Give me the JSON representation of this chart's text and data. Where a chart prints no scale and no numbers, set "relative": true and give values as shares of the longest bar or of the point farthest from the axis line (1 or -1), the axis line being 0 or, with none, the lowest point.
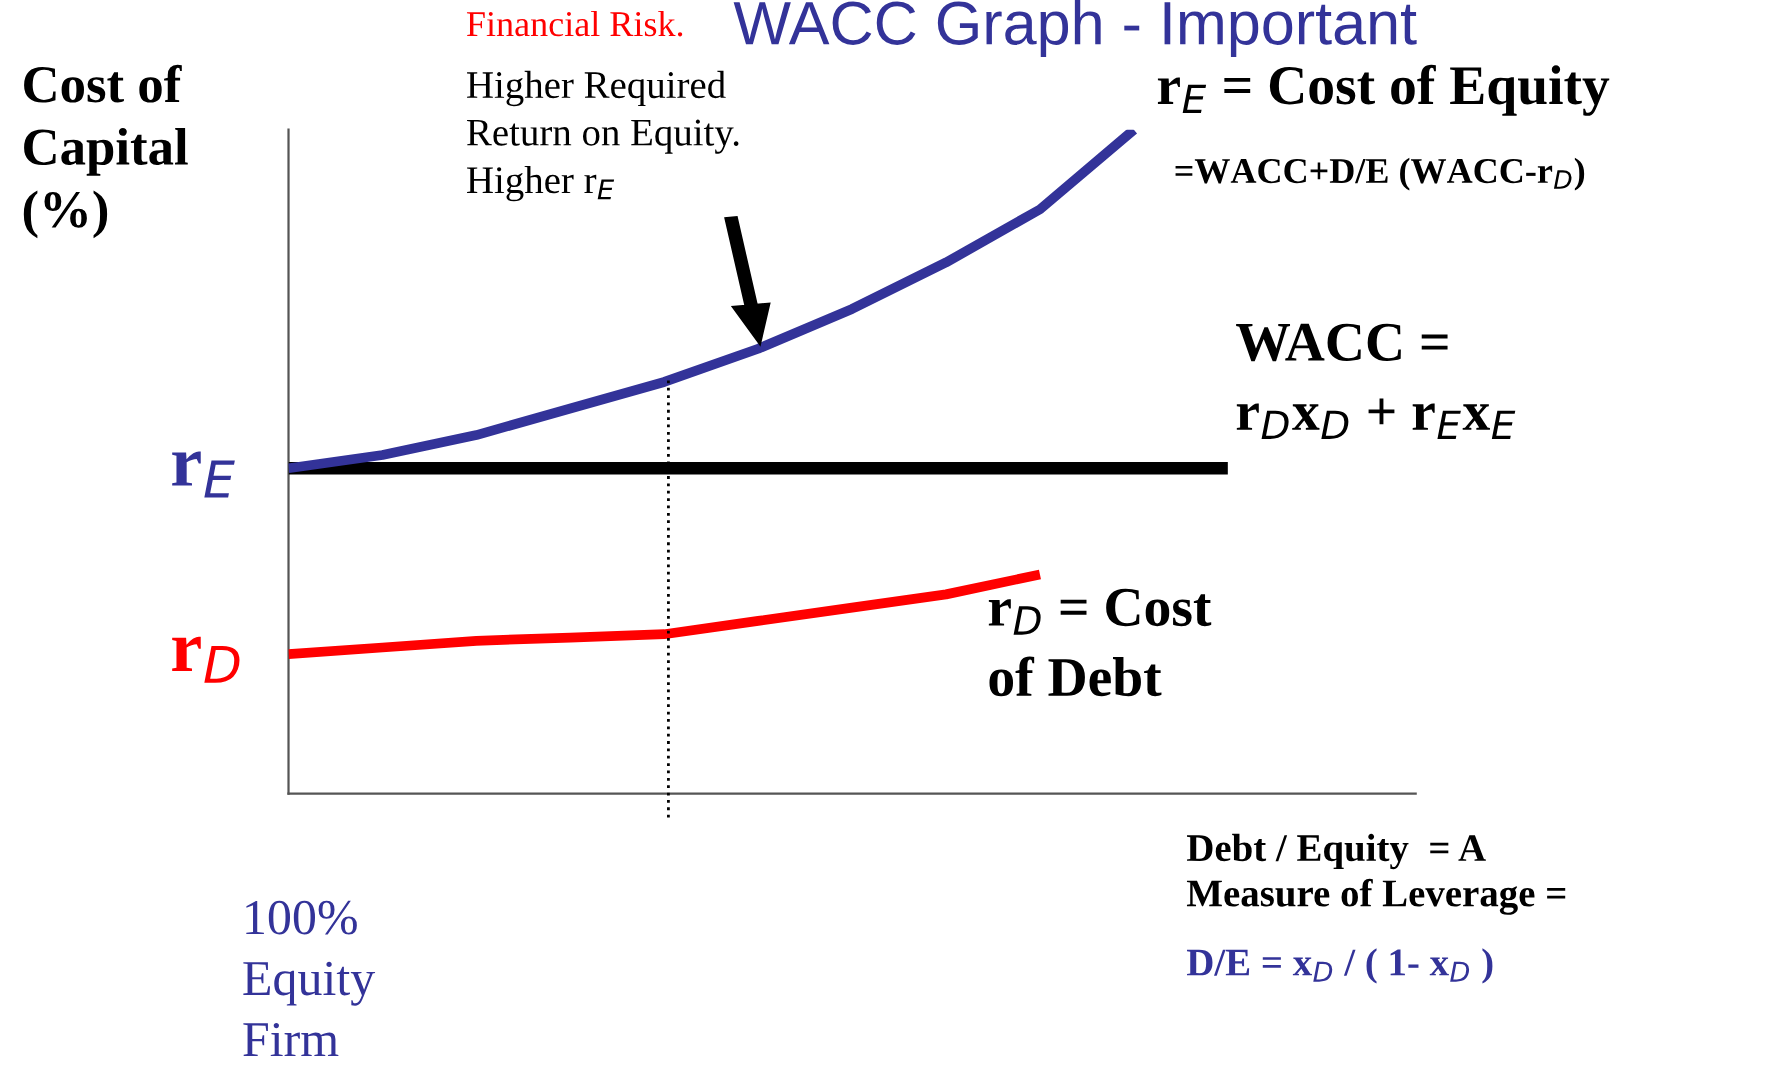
{
  "chart_data": {
    "type": "line",
    "relative": true,
    "title": "WACC Graph - Important",
    "ylabel": "Cost of\nCapital\n(%)",
    "xlabel": "Debt / Equity  = A\nMeasure of Leverage =",
    "categories": [
      null,
      null,
      null,
      null,
      null,
      null,
      null,
      null,
      null,
      null,
      null,
      null,
      null
    ],
    "series": [
      {
        "name": "r$_{E}$ = Cost of Equity",
        "color": "#333399",
        "values": [
          0.49,
          0.51,
          0.54,
          0.58,
          0.62,
          0.67,
          0.73,
          0.8,
          0.88,
          1.0,
          null,
          null,
          null
        ]
      },
      {
        "name": "WACC =\nr$_{D}$x$_{D}$ + r$_{E}$x$_{E}$",
        "color": "#000000",
        "values": [
          0.49,
          0.49,
          0.49,
          0.49,
          0.49,
          0.49,
          0.49,
          0.49,
          0.49,
          0.49,
          0.49,
          null,
          null
        ]
      },
      {
        "name": "r$_{D}$ = Cost\nof Debt",
        "color": "#ff0000",
        "values": [
          0.21,
          0.22,
          0.23,
          0.235,
          0.24,
          0.26,
          0.28,
          0.3,
          0.33,
          null,
          null,
          null,
          null
        ]
      }
    ],
    "annotations": [
      "=WACC+D/E (WACC-r$_{D}$)",
      "Financial Risk.",
      "Higher Required\nReturn on Equity.\nHigher r$_{E}$",
      "r$_{E}$",
      "r$_{D}$",
      "100%\nEquity\nFirm",
      "D/E = x$_{D}$ / ( 1- x$_{D}$ )"
    ],
    "grid": false,
    "legend": false,
    "marker": "none",
    "line_style": "solid"
  }
}
